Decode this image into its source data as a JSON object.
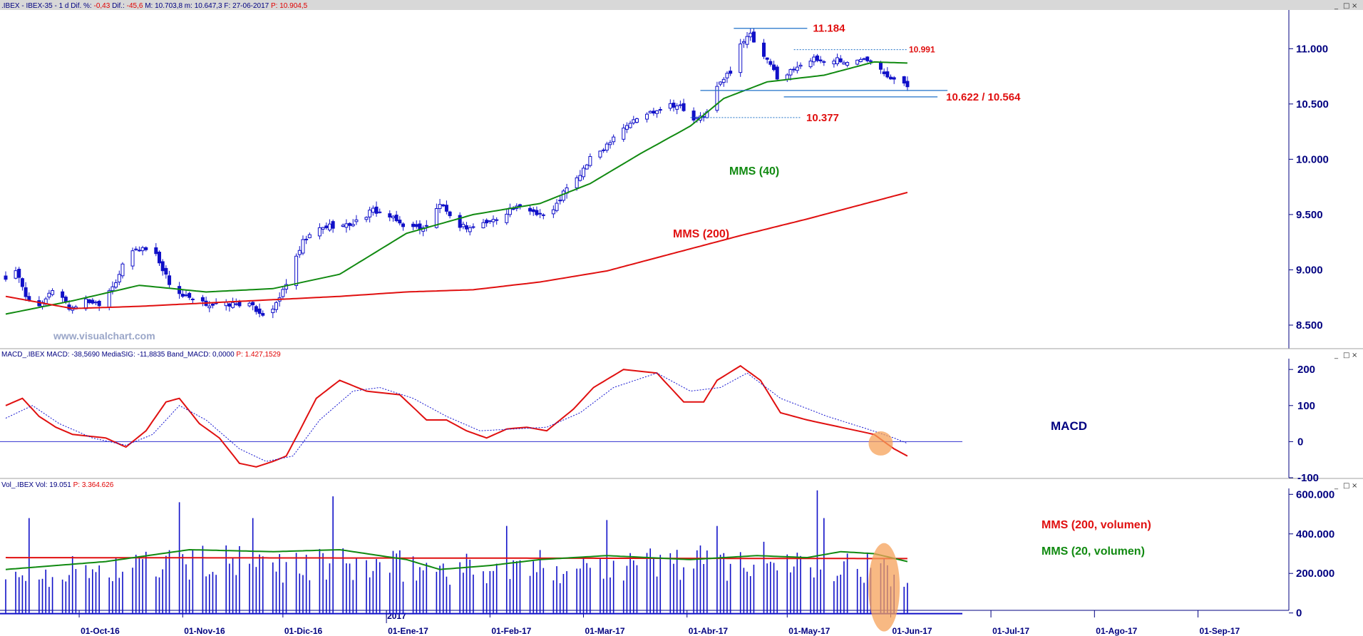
{
  "panels": {
    "price": {
      "header_parts": [
        {
          "text": ".IBEX - IBEX-35 - 1 d Dif. %: ",
          "color": "#000080"
        },
        {
          "text": "-0,43",
          "color": "#e00000"
        },
        {
          "text": " Dif.: ",
          "color": "#000080"
        },
        {
          "text": "-45,6",
          "color": "#e00000"
        },
        {
          "text": " M: 10.703,8 m: 10.647,3 F: 27-06-2017 ",
          "color": "#000080"
        },
        {
          "text": "P: 10.904,5",
          "color": "#e00000"
        }
      ],
      "watermark": "www.visualchart.com"
    },
    "macd": {
      "header_parts": [
        {
          "text": "MACD_.IBEX MACD: -38,5690 MediaSIG: -11,8835 Band_MACD: 0,0000 ",
          "color": "#000080"
        },
        {
          "text": "P: 1.427,1529",
          "color": "#e00000"
        }
      ]
    },
    "volume": {
      "header_parts": [
        {
          "text": "Vol_.IBEX Vol: 19.051 ",
          "color": "#000080"
        },
        {
          "text": "P: 3.364.626",
          "color": "#e00000"
        }
      ]
    }
  },
  "chart_data": [
    {
      "type": "candlestick",
      "name": "IBEX-35 price",
      "ylim": [
        8300,
        11350
      ],
      "y_ticks": [
        8500,
        9000,
        9500,
        10000,
        10500,
        11000
      ],
      "y_tick_labels": [
        "8.500",
        "9.000",
        "9.500",
        "10.000",
        "10.500",
        "11.000"
      ],
      "x_start_date": "2016-09-09",
      "x_tick_labels": [
        "01-Oct-16",
        "01-Nov-16",
        "01-Dic-16",
        "01-Ene-17",
        "01-Feb-17",
        "01-Mar-17",
        "01-Abr-17",
        "01-May-17",
        "01-Jun-17",
        "01-Jul-17",
        "01-Ago-17",
        "01-Sep-17"
      ],
      "x_tick_days": [
        22,
        53,
        83,
        114,
        145,
        173,
        204,
        234,
        265,
        295,
        326,
        357
      ],
      "year_marker": {
        "label": "2017",
        "day": 114
      },
      "close_anchors": [
        [
          0,
          8920
        ],
        [
          3,
          9000
        ],
        [
          6,
          8750
        ],
        [
          11,
          8680
        ],
        [
          15,
          8870
        ],
        [
          19,
          8650
        ],
        [
          24,
          8720
        ],
        [
          28,
          8700
        ],
        [
          33,
          8900
        ],
        [
          37,
          9160
        ],
        [
          41,
          9200
        ],
        [
          45,
          9140
        ],
        [
          49,
          8880
        ],
        [
          53,
          8760
        ],
        [
          58,
          8700
        ],
        [
          63,
          8680
        ],
        [
          68,
          8690
        ],
        [
          72,
          8700
        ],
        [
          77,
          8600
        ],
        [
          81,
          8680
        ],
        [
          85,
          8950
        ],
        [
          89,
          9250
        ],
        [
          93,
          9360
        ],
        [
          97,
          9400
        ],
        [
          102,
          9400
        ],
        [
          106,
          9450
        ],
        [
          110,
          9540
        ],
        [
          114,
          9500
        ],
        [
          118,
          9420
        ],
        [
          122,
          9380
        ],
        [
          126,
          9390
        ],
        [
          130,
          9600
        ],
        [
          134,
          9420
        ],
        [
          139,
          9380
        ],
        [
          143,
          9420
        ],
        [
          147,
          9460
        ],
        [
          151,
          9550
        ],
        [
          155,
          9560
        ],
        [
          159,
          9520
        ],
        [
          163,
          9480
        ],
        [
          167,
          9700
        ],
        [
          171,
          9820
        ],
        [
          175,
          10000
        ],
        [
          179,
          10100
        ],
        [
          183,
          10250
        ],
        [
          187,
          10330
        ],
        [
          191,
          10400
        ],
        [
          195,
          10450
        ],
        [
          199,
          10500
        ],
        [
          202,
          10480
        ],
        [
          205,
          10350
        ],
        [
          209,
          10380
        ],
        [
          213,
          10650
        ],
        [
          217,
          10800
        ],
        [
          220,
          11050
        ],
        [
          223,
          11120
        ],
        [
          226,
          10950
        ],
        [
          229,
          10850
        ],
        [
          232,
          10700
        ],
        [
          235,
          10800
        ],
        [
          238,
          10870
        ],
        [
          242,
          10900
        ],
        [
          246,
          10880
        ],
        [
          249,
          10910
        ],
        [
          253,
          10850
        ],
        [
          257,
          10930
        ],
        [
          261,
          10870
        ],
        [
          264,
          10760
        ],
        [
          267,
          10700
        ],
        [
          270,
          10660
        ]
      ],
      "series": [
        {
          "name": "MMS (40)",
          "color": "#118a11",
          "anchors": [
            [
              0,
              8600
            ],
            [
              20,
              8720
            ],
            [
              40,
              8860
            ],
            [
              60,
              8800
            ],
            [
              80,
              8830
            ],
            [
              100,
              8960
            ],
            [
              120,
              9330
            ],
            [
              140,
              9500
            ],
            [
              160,
              9600
            ],
            [
              175,
              9780
            ],
            [
              190,
              10050
            ],
            [
              205,
              10300
            ],
            [
              215,
              10550
            ],
            [
              228,
              10700
            ],
            [
              245,
              10760
            ],
            [
              260,
              10880
            ],
            [
              270,
              10870
            ]
          ]
        },
        {
          "name": "MMS (200)",
          "color": "#e01010",
          "anchors": [
            [
              0,
              8760
            ],
            [
              20,
              8650
            ],
            [
              40,
              8670
            ],
            [
              60,
              8700
            ],
            [
              80,
              8730
            ],
            [
              100,
              8760
            ],
            [
              120,
              8800
            ],
            [
              140,
              8820
            ],
            [
              160,
              8890
            ],
            [
              180,
              8990
            ],
            [
              200,
              9150
            ],
            [
              220,
              9310
            ],
            [
              240,
              9460
            ],
            [
              260,
              9620
            ],
            [
              270,
              9700
            ]
          ]
        }
      ],
      "levels": [
        {
          "label": "11.184",
          "value": 11184,
          "style": "solid",
          "from": 218,
          "to": 240
        },
        {
          "label": "10.991",
          "value": 10991,
          "style": "dotted",
          "from": 236,
          "to": 270
        },
        {
          "label": "10.622 / 10.564",
          "value_upper": 10622,
          "value_lower": 10564,
          "style": "solid",
          "from": 208,
          "to": 282
        },
        {
          "label": "10.377",
          "value": 10377,
          "style": "dotted",
          "from": 205,
          "to": 238
        }
      ]
    },
    {
      "type": "line",
      "name": "MACD",
      "ylim": [
        -100,
        230
      ],
      "y_ticks": [
        200,
        100,
        0,
        -100
      ],
      "y_tick_labels": [
        "200",
        "100",
        "0",
        "-100"
      ],
      "label": "MACD",
      "series": [
        {
          "name": "MACD",
          "color": "#e01010",
          "anchors": [
            [
              0,
              100
            ],
            [
              5,
              120
            ],
            [
              10,
              70
            ],
            [
              15,
              40
            ],
            [
              20,
              20
            ],
            [
              30,
              10
            ],
            [
              36,
              -15
            ],
            [
              42,
              30
            ],
            [
              48,
              110
            ],
            [
              52,
              120
            ],
            [
              58,
              50
            ],
            [
              64,
              10
            ],
            [
              70,
              -60
            ],
            [
              75,
              -70
            ],
            [
              80,
              -55
            ],
            [
              84,
              -40
            ],
            [
              88,
              30
            ],
            [
              93,
              120
            ],
            [
              100,
              170
            ],
            [
              108,
              140
            ],
            [
              118,
              130
            ],
            [
              126,
              60
            ],
            [
              132,
              60
            ],
            [
              138,
              30
            ],
            [
              144,
              10
            ],
            [
              150,
              35
            ],
            [
              156,
              40
            ],
            [
              162,
              30
            ],
            [
              170,
              90
            ],
            [
              176,
              150
            ],
            [
              185,
              200
            ],
            [
              195,
              190
            ],
            [
              203,
              110
            ],
            [
              209,
              110
            ],
            [
              213,
              170
            ],
            [
              220,
              210
            ],
            [
              226,
              170
            ],
            [
              232,
              80
            ],
            [
              240,
              60
            ],
            [
              250,
              40
            ],
            [
              260,
              20
            ],
            [
              266,
              -20
            ],
            [
              270,
              -40
            ]
          ]
        },
        {
          "name": "MediaSIG",
          "color": "#1414d0",
          "style": "dotted",
          "anchors": [
            [
              0,
              65
            ],
            [
              8,
              100
            ],
            [
              16,
              50
            ],
            [
              26,
              10
            ],
            [
              36,
              -10
            ],
            [
              44,
              20
            ],
            [
              52,
              100
            ],
            [
              60,
              60
            ],
            [
              70,
              -20
            ],
            [
              78,
              -55
            ],
            [
              86,
              -40
            ],
            [
              94,
              60
            ],
            [
              104,
              140
            ],
            [
              112,
              150
            ],
            [
              122,
              120
            ],
            [
              132,
              70
            ],
            [
              142,
              30
            ],
            [
              152,
              35
            ],
            [
              162,
              40
            ],
            [
              172,
              80
            ],
            [
              182,
              150
            ],
            [
              195,
              190
            ],
            [
              205,
              140
            ],
            [
              214,
              150
            ],
            [
              222,
              190
            ],
            [
              232,
              120
            ],
            [
              246,
              70
            ],
            [
              258,
              35
            ],
            [
              266,
              10
            ],
            [
              270,
              -5
            ]
          ]
        }
      ]
    },
    {
      "type": "bar",
      "name": "Volume",
      "ylim": [
        -30000,
        630000
      ],
      "y_ticks": [
        600000,
        400000,
        200000,
        0
      ],
      "y_tick_labels": [
        "600.000",
        "400.000",
        "200.000",
        "0"
      ],
      "labels": [
        "MMS (200, volumen)",
        "MMS (20, volumen)"
      ],
      "volume_anchors": [
        [
          0,
          190000
        ],
        [
          30,
          210000
        ],
        [
          60,
          240000
        ],
        [
          90,
          230000
        ],
        [
          120,
          220000
        ],
        [
          150,
          210000
        ],
        [
          180,
          240000
        ],
        [
          210,
          250000
        ],
        [
          240,
          250000
        ],
        [
          260,
          220000
        ],
        [
          270,
          130000
        ]
      ],
      "volume_spikes": [
        [
          7,
          480000
        ],
        [
          23,
          460000
        ],
        [
          50,
          590000
        ],
        [
          52,
          560000
        ],
        [
          74,
          480000
        ],
        [
          85,
          600000
        ],
        [
          98,
          590000
        ],
        [
          150,
          440000
        ],
        [
          180,
          470000
        ],
        [
          213,
          440000
        ],
        [
          243,
          620000
        ],
        [
          245,
          480000
        ]
      ],
      "series": [
        {
          "name": "MMS (200, volumen)",
          "color": "#e01010",
          "anchors": [
            [
              0,
              280000
            ],
            [
              270,
              275000
            ]
          ]
        },
        {
          "name": "MMS (20, volumen)",
          "color": "#118a11",
          "anchors": [
            [
              0,
              220000
            ],
            [
              30,
              260000
            ],
            [
              55,
              320000
            ],
            [
              80,
              310000
            ],
            [
              100,
              320000
            ],
            [
              120,
              270000
            ],
            [
              130,
              220000
            ],
            [
              145,
              240000
            ],
            [
              160,
              270000
            ],
            [
              180,
              290000
            ],
            [
              205,
              270000
            ],
            [
              225,
              290000
            ],
            [
              240,
              280000
            ],
            [
              250,
              310000
            ],
            [
              260,
              300000
            ],
            [
              270,
              260000
            ]
          ]
        }
      ]
    }
  ],
  "highlights": [
    "macd-crossover",
    "volume-last-sessions"
  ]
}
